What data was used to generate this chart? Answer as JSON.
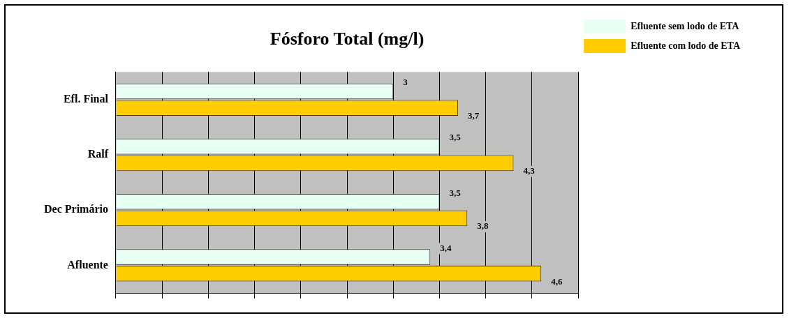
{
  "chart_data": {
    "type": "bar",
    "orientation": "horizontal",
    "title": "Fósforo Total (mg/l)",
    "categories": [
      "Efl. Final",
      "Ralf",
      "Dec Primário",
      "Afluente"
    ],
    "series": [
      {
        "name": "Efluente sem lodo de ETA",
        "color": "#e8fff4",
        "values": [
          3,
          3.5,
          3.5,
          3.4
        ],
        "value_labels": [
          "3",
          "3,5",
          "3,5",
          "3,4"
        ]
      },
      {
        "name": "Efluente com lodo de ETA",
        "color": "#ffcc00",
        "values": [
          3.7,
          4.3,
          3.8,
          4.6
        ],
        "value_labels": [
          "3,7",
          "4,3",
          "3,8",
          "4,6"
        ]
      }
    ],
    "xlim": [
      0,
      5
    ],
    "xticks": [
      {
        "value": 0,
        "label": null
      },
      {
        "value": 0.5,
        "label": null
      },
      {
        "value": 1,
        "label": null
      },
      {
        "value": 1.5,
        "label": null
      },
      {
        "value": 2,
        "label": null
      },
      {
        "value": 2.5,
        "label": null
      },
      {
        "value": 3,
        "label": null
      },
      {
        "value": 3.5,
        "label": null
      },
      {
        "value": 4,
        "label": null
      },
      {
        "value": 4.5,
        "label": null
      },
      {
        "value": 5,
        "label": null
      }
    ],
    "tick_labels": "y",
    "grid": "x",
    "legend": "top right"
  }
}
